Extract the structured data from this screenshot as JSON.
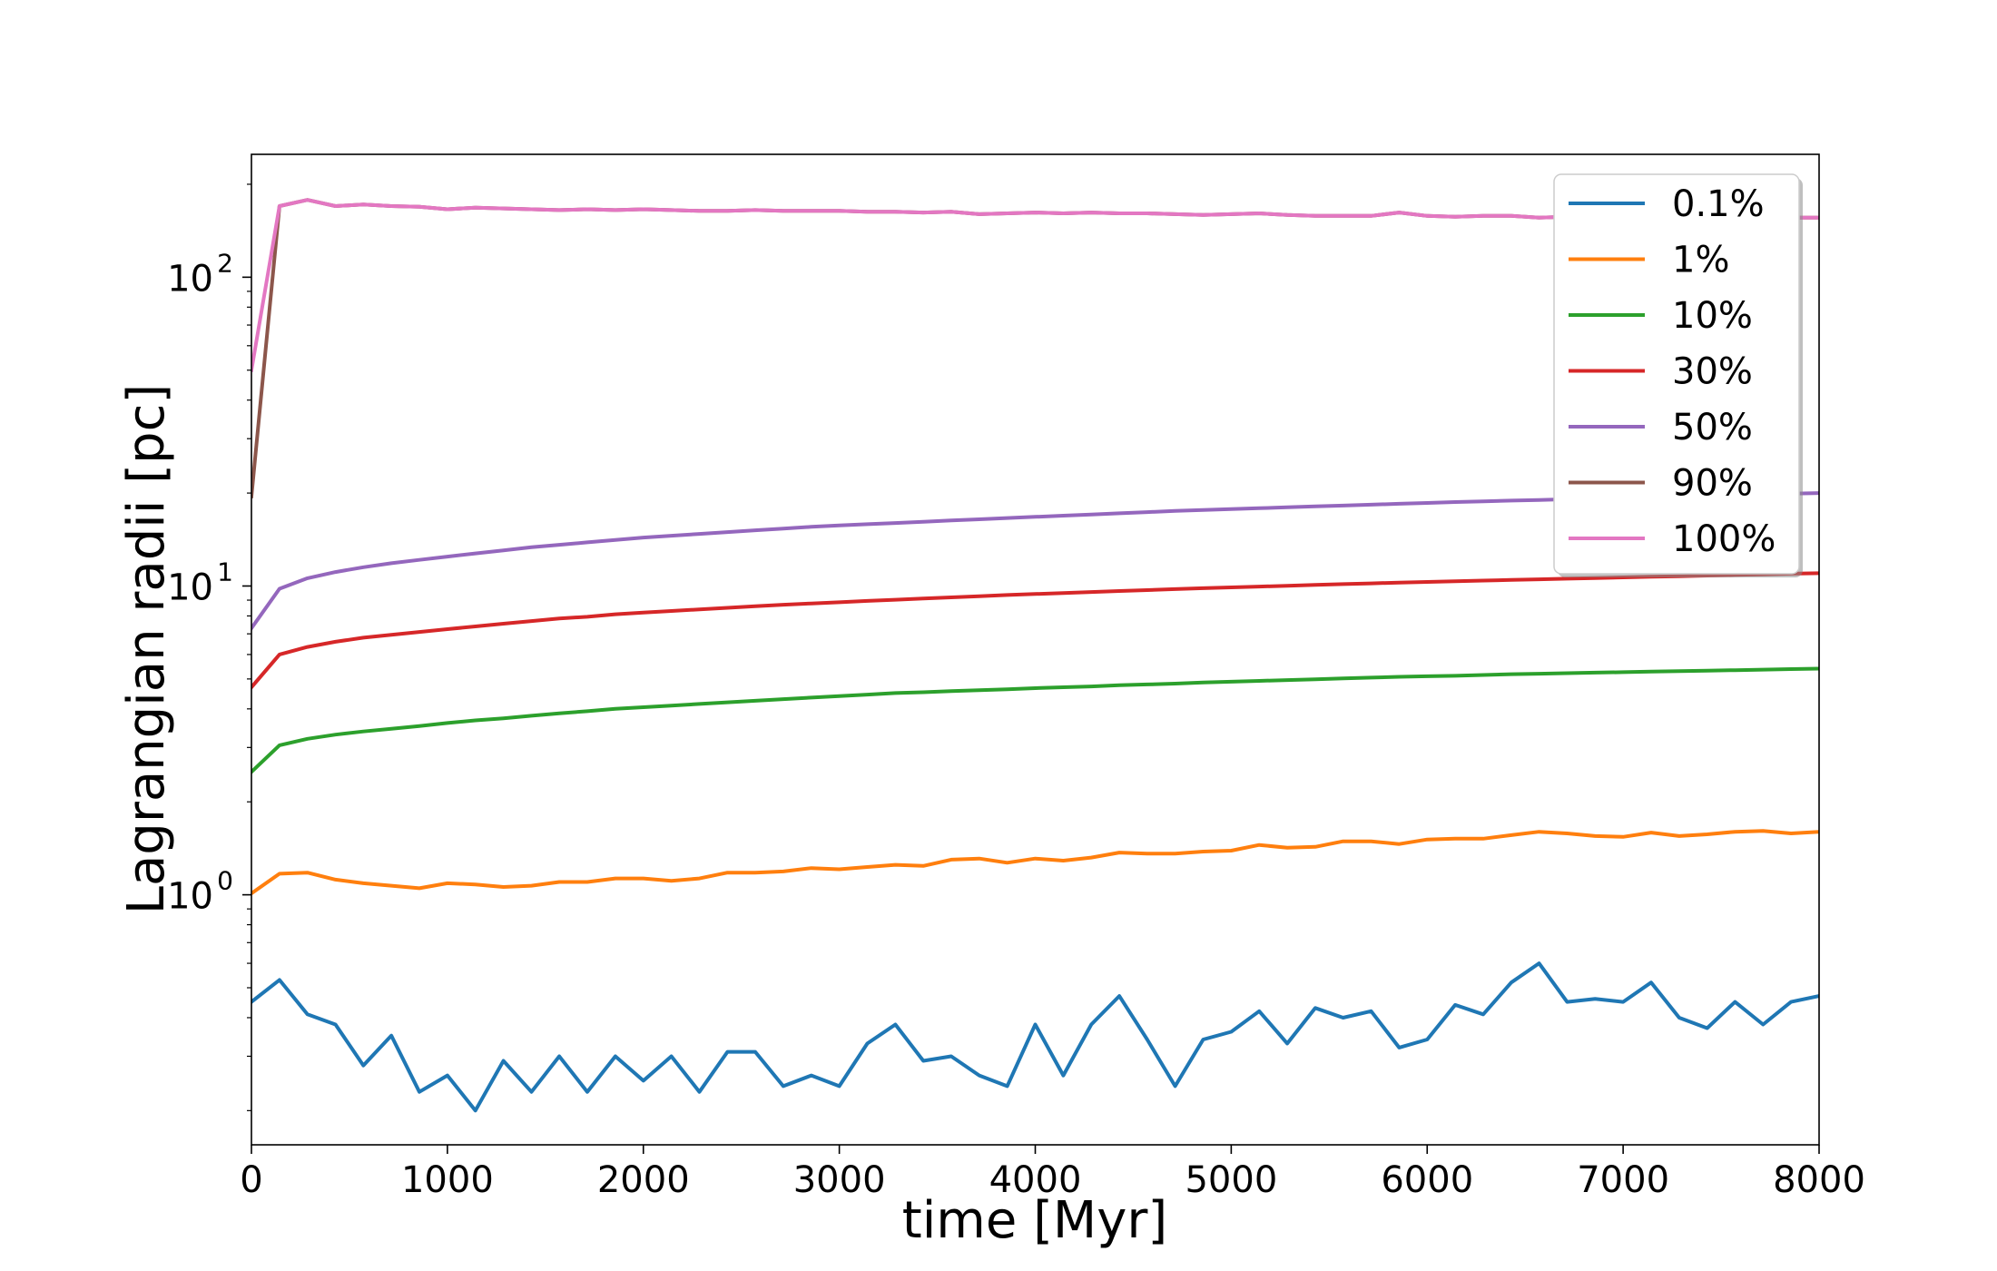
{
  "chart_data": {
    "type": "line",
    "title": "",
    "xlabel": "time [Myr]",
    "ylabel": "Lagrangian radii [pc]",
    "xlim": [
      0,
      8000
    ],
    "ylim": [
      0.155,
      250
    ],
    "yscale": "log",
    "grid": false,
    "legend_position": "top-right",
    "x_ticks": [
      0,
      1000,
      2000,
      3000,
      4000,
      5000,
      6000,
      7000,
      8000
    ],
    "x_tick_labels": [
      "0",
      "1000",
      "2000",
      "3000",
      "4000",
      "5000",
      "6000",
      "7000",
      "8000"
    ],
    "y_ticks": [
      1,
      10,
      100
    ],
    "y_tick_labels": [
      {
        "base": "10",
        "exp": "0"
      },
      {
        "base": "10",
        "exp": "1"
      },
      {
        "base": "10",
        "exp": "2"
      }
    ],
    "x": [
      0,
      143,
      286,
      429,
      571,
      714,
      857,
      1000,
      1143,
      1286,
      1429,
      1571,
      1714,
      1857,
      2000,
      2143,
      2286,
      2429,
      2571,
      2714,
      2857,
      3000,
      3143,
      3286,
      3429,
      3571,
      3714,
      3857,
      4000,
      4143,
      4286,
      4429,
      4571,
      4714,
      4857,
      5000,
      5143,
      5286,
      5429,
      5571,
      5714,
      5857,
      6000,
      6143,
      6286,
      6429,
      6571,
      6714,
      6857,
      7000,
      7143,
      7286,
      7429,
      7571,
      7714,
      7857,
      8000
    ],
    "series": [
      {
        "name": "0.1%",
        "color": "#1f77b4",
        "values": [
          0.45,
          0.53,
          0.41,
          0.38,
          0.28,
          0.35,
          0.23,
          0.26,
          0.2,
          0.29,
          0.23,
          0.3,
          0.23,
          0.3,
          0.25,
          0.3,
          0.23,
          0.31,
          0.31,
          0.24,
          0.26,
          0.24,
          0.33,
          0.38,
          0.29,
          0.3,
          0.26,
          0.24,
          0.38,
          0.26,
          0.38,
          0.47,
          0.34,
          0.24,
          0.34,
          0.36,
          0.42,
          0.33,
          0.43,
          0.4,
          0.42,
          0.32,
          0.34,
          0.44,
          0.41,
          0.52,
          0.6,
          0.45,
          0.46,
          0.45,
          0.52,
          0.4,
          0.37,
          0.45,
          0.38,
          0.45,
          0.47
        ]
      },
      {
        "name": "1%",
        "color": "#ff7f0e",
        "values": [
          1.01,
          1.17,
          1.18,
          1.12,
          1.09,
          1.07,
          1.05,
          1.09,
          1.08,
          1.06,
          1.07,
          1.1,
          1.1,
          1.13,
          1.13,
          1.11,
          1.13,
          1.18,
          1.18,
          1.19,
          1.22,
          1.21,
          1.23,
          1.25,
          1.24,
          1.3,
          1.31,
          1.27,
          1.31,
          1.29,
          1.32,
          1.37,
          1.36,
          1.36,
          1.38,
          1.39,
          1.45,
          1.42,
          1.43,
          1.49,
          1.49,
          1.46,
          1.51,
          1.52,
          1.52,
          1.56,
          1.6,
          1.58,
          1.55,
          1.54,
          1.59,
          1.55,
          1.57,
          1.6,
          1.61,
          1.58,
          1.6
        ]
      },
      {
        "name": "10%",
        "color": "#2ca02c",
        "values": [
          2.5,
          3.05,
          3.2,
          3.3,
          3.38,
          3.45,
          3.52,
          3.6,
          3.67,
          3.73,
          3.8,
          3.87,
          3.93,
          4.0,
          4.05,
          4.1,
          4.15,
          4.2,
          4.25,
          4.3,
          4.35,
          4.4,
          4.45,
          4.5,
          4.53,
          4.57,
          4.6,
          4.63,
          4.67,
          4.7,
          4.73,
          4.77,
          4.8,
          4.83,
          4.87,
          4.9,
          4.93,
          4.96,
          4.99,
          5.02,
          5.05,
          5.08,
          5.1,
          5.12,
          5.15,
          5.18,
          5.2,
          5.22,
          5.24,
          5.26,
          5.28,
          5.3,
          5.32,
          5.34,
          5.36,
          5.38,
          5.4
        ]
      },
      {
        "name": "30%",
        "color": "#d62728",
        "values": [
          4.7,
          6.0,
          6.35,
          6.6,
          6.8,
          6.95,
          7.1,
          7.25,
          7.4,
          7.55,
          7.7,
          7.85,
          7.95,
          8.1,
          8.2,
          8.3,
          8.4,
          8.5,
          8.6,
          8.7,
          8.78,
          8.86,
          8.95,
          9.03,
          9.11,
          9.19,
          9.27,
          9.35,
          9.42,
          9.49,
          9.56,
          9.63,
          9.7,
          9.77,
          9.84,
          9.9,
          9.96,
          10.02,
          10.08,
          10.14,
          10.2,
          10.26,
          10.31,
          10.36,
          10.41,
          10.46,
          10.51,
          10.56,
          10.61,
          10.66,
          10.71,
          10.76,
          10.81,
          10.86,
          10.91,
          10.96,
          11.0
        ]
      },
      {
        "name": "50%",
        "color": "#9467bd",
        "values": [
          7.3,
          9.8,
          10.6,
          11.1,
          11.5,
          11.85,
          12.15,
          12.45,
          12.75,
          13.05,
          13.35,
          13.6,
          13.85,
          14.1,
          14.35,
          14.55,
          14.75,
          14.95,
          15.15,
          15.35,
          15.55,
          15.7,
          15.85,
          16.0,
          16.15,
          16.3,
          16.45,
          16.6,
          16.75,
          16.9,
          17.05,
          17.2,
          17.35,
          17.5,
          17.62,
          17.74,
          17.86,
          17.98,
          18.1,
          18.22,
          18.34,
          18.46,
          18.58,
          18.7,
          18.8,
          18.9,
          19.0,
          19.1,
          19.2,
          19.3,
          19.4,
          19.5,
          19.6,
          19.7,
          19.8,
          19.9,
          20.0
        ]
      },
      {
        "name": "90%",
        "color": "#8c564b",
        "values": [
          19.5,
          170,
          178,
          170,
          172,
          170,
          169,
          166,
          168,
          167,
          166,
          165,
          166,
          165,
          166,
          165,
          164,
          164,
          165,
          164,
          164,
          164,
          163,
          163,
          162,
          163,
          160,
          161,
          162,
          161,
          162,
          161,
          161,
          160,
          159,
          160,
          161,
          159,
          158,
          158,
          158,
          162,
          158,
          157,
          158,
          158,
          156,
          157,
          157,
          157,
          157,
          157,
          156,
          156,
          156,
          156,
          156
        ]
      },
      {
        "name": "100%",
        "color": "#e377c2",
        "values": [
          50,
          170,
          178,
          170,
          172,
          170,
          169,
          166,
          168,
          167,
          166,
          165,
          166,
          165,
          166,
          165,
          164,
          164,
          165,
          164,
          164,
          164,
          163,
          163,
          162,
          163,
          160,
          161,
          162,
          161,
          162,
          161,
          161,
          160,
          159,
          160,
          161,
          159,
          158,
          158,
          158,
          162,
          158,
          157,
          158,
          158,
          156,
          157,
          157,
          157,
          157,
          157,
          156,
          156,
          156,
          156,
          156
        ]
      }
    ]
  }
}
